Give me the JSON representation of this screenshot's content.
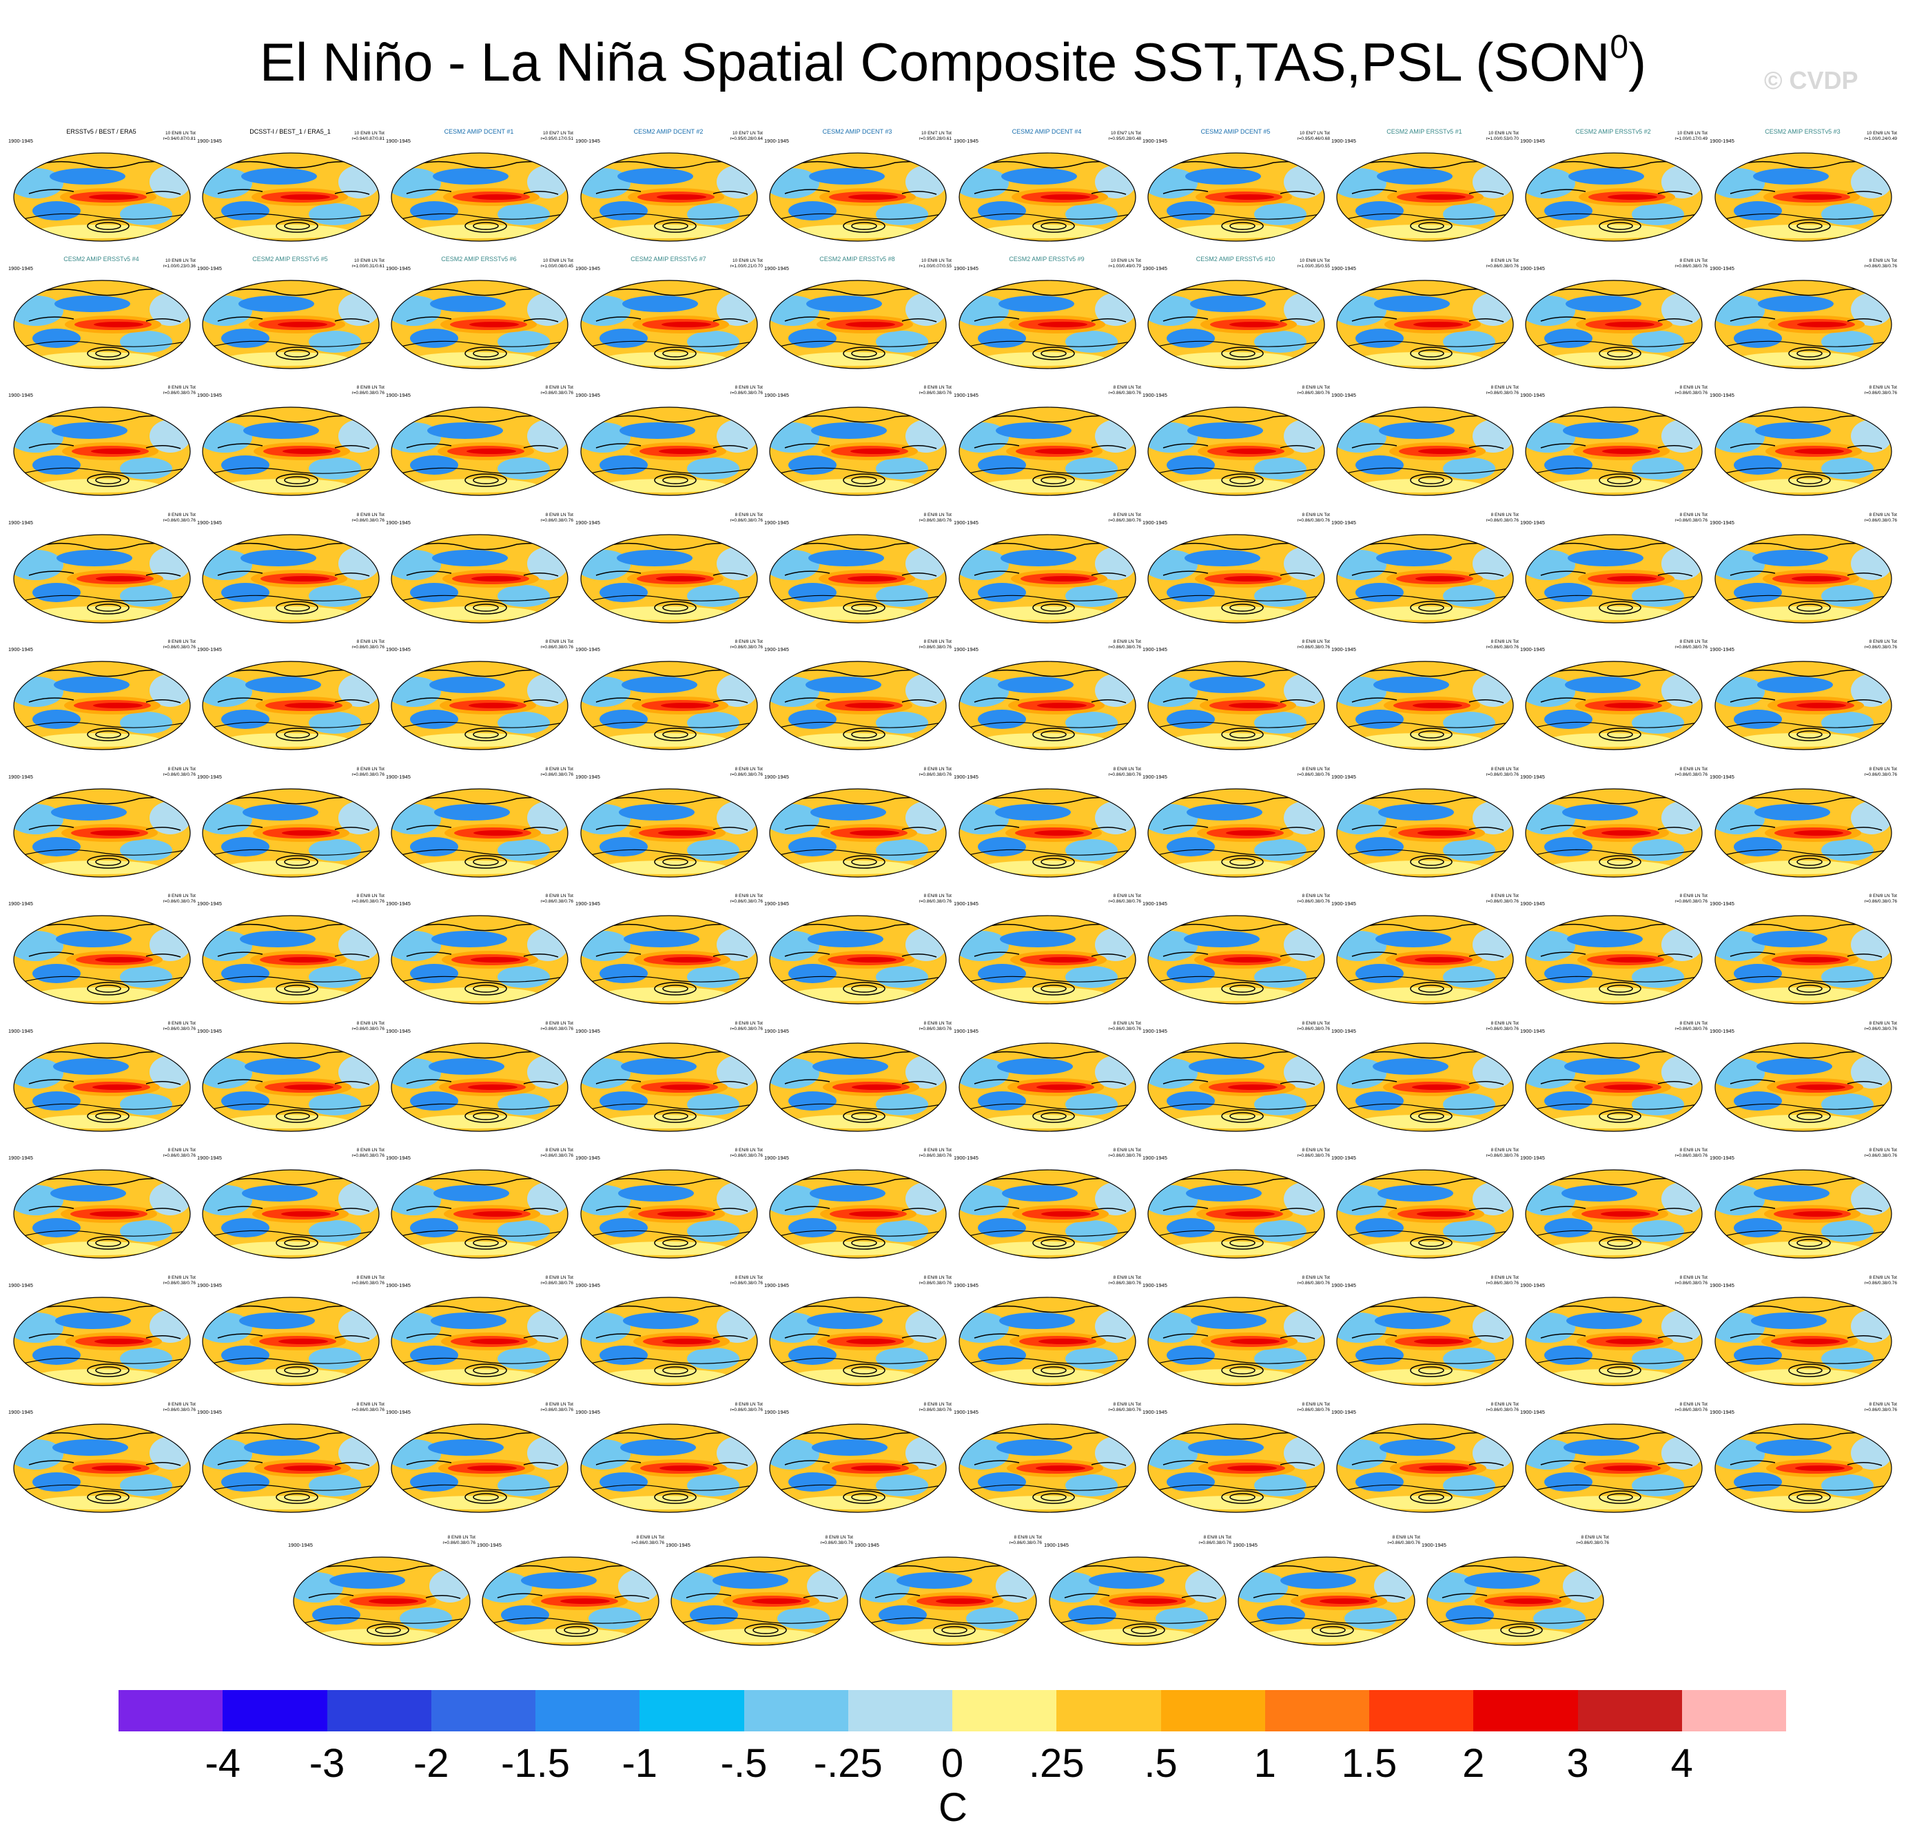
{
  "title": {
    "main": "El Niño - La Niña Spatial Composite SST,TAS,PSL (SON",
    "superscript": "0",
    "close": ")"
  },
  "watermark": "© CVDP",
  "period": "1900-1945",
  "panels": [
    {
      "title": "ERSSTv5 / BEST / ERA5",
      "title_color": "#000000",
      "stats": "10 EN/8 LN Tot\nr=0.94/0.87/0.81"
    },
    {
      "title": "DCSST-I / BEST_1 / ERA5_1",
      "title_color": "#000000",
      "stats": "10 EN/8 LN Tot\nr=0.94/0.87/0.81"
    },
    {
      "title": "CESM2 AMIP DCENT #1",
      "title_color": "#1a6fae",
      "stats": "10 EN/7 LN Tot\nr=0.95/0.17/0.51"
    },
    {
      "title": "CESM2 AMIP DCENT #2",
      "title_color": "#1a6fae",
      "stats": "10 EN/7 LN Tot\nr=0.95/0.28/0.64"
    },
    {
      "title": "CESM2 AMIP DCENT #3",
      "title_color": "#1a6fae",
      "stats": "10 EN/7 LN Tot\nr=0.95/0.28/0.61"
    },
    {
      "title": "CESM2 AMIP DCENT #4",
      "title_color": "#1a6fae",
      "stats": "10 EN/7 LN Tot\nr=0.95/0.28/0.48"
    },
    {
      "title": "CESM2 AMIP DCENT #5",
      "title_color": "#1a6fae",
      "stats": "10 EN/7 LN Tot\nr=0.95/0.46/0.68"
    },
    {
      "title": "CESM2 AMIP ERSSTv5 #1",
      "title_color": "#3a8a8a",
      "stats": "10 EN/8 LN Tot\nr=1.00/0.53/0.70"
    },
    {
      "title": "CESM2 AMIP ERSSTv5 #2",
      "title_color": "#3a8a8a",
      "stats": "10 EN/8 LN Tot\nr=1.00/0.17/0.49"
    },
    {
      "title": "CESM2 AMIP ERSSTv5 #3",
      "title_color": "#3a8a8a",
      "stats": "10 EN/8 LN Tot\nr=1.00/0.24/0.49"
    },
    {
      "title": "CESM2 AMIP ERSSTv5 #4",
      "title_color": "#3a8a8a",
      "stats": "10 EN/8 LN Tot\nr=1.00/0.23/0.36"
    },
    {
      "title": "CESM2 AMIP ERSSTv5 #5",
      "title_color": "#3a8a8a",
      "stats": "10 EN/8 LN Tot\nr=1.00/0.31/0.61"
    },
    {
      "title": "CESM2 AMIP ERSSTv5 #6",
      "title_color": "#3a8a8a",
      "stats": "10 EN/8 LN Tot\nr=1.00/0.08/0.45"
    },
    {
      "title": "CESM2 AMIP ERSSTv5 #7",
      "title_color": "#3a8a8a",
      "stats": "10 EN/8 LN Tot\nr=1.00/0.21/0.70"
    },
    {
      "title": "CESM2 AMIP ERSSTv5 #8",
      "title_color": "#3a8a8a",
      "stats": "10 EN/8 LN Tot\nr=1.00/0.07/0.55"
    },
    {
      "title": "CESM2 AMIP ERSSTv5 #9",
      "title_color": "#3a8a8a",
      "stats": "10 EN/8 LN Tot\nr=1.00/0.49/0.79"
    },
    {
      "title": "CESM2 AMIP ERSSTv5 #10",
      "title_color": "#3a8a8a",
      "stats": "10 EN/8 LN Tot\nr=1.00/0.35/0.55"
    }
  ],
  "lens_panel": {
    "title_color": "#e8b84a",
    "stats": "8 EN/8 LN Tot\nr=0.86/0.38/0.76"
  },
  "grid": {
    "rows": 12,
    "cols": 10,
    "last_row_count": 7,
    "total": 117
  },
  "colorbar": {
    "colors": [
      "#7b24e8",
      "#1e00f5",
      "#2a3ede",
      "#3369e6",
      "#2b8df0",
      "#06bdf5",
      "#72c8f0",
      "#b2ddf0",
      "#fff385",
      "#ffc72a",
      "#ffaa0a",
      "#ff7a14",
      "#ff3c0a",
      "#e80000",
      "#c81e1e",
      "#ffb4b4"
    ],
    "ticks": [
      "-4",
      "-3",
      "-2",
      "-1.5",
      "-1",
      "-.5",
      "-.25",
      "0",
      ".25",
      ".5",
      "1",
      "1.5",
      "2",
      "3",
      "4"
    ],
    "unit": "C"
  }
}
